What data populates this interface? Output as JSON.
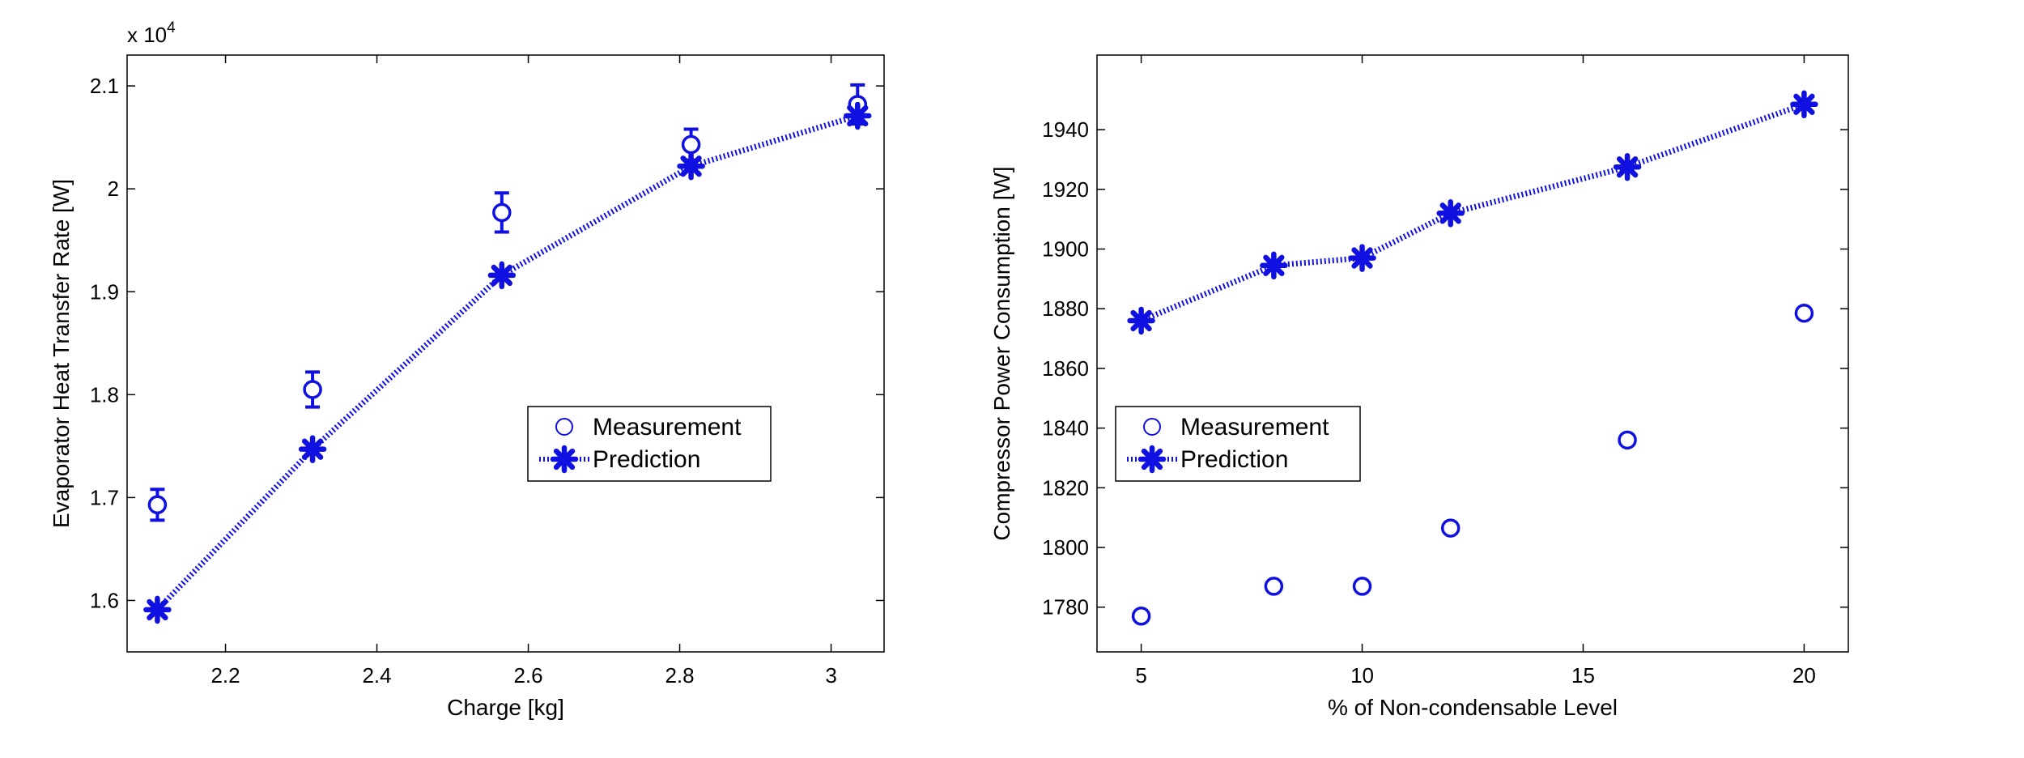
{
  "chart_data": [
    {
      "type": "scatter",
      "xlabel": "Charge [kg]",
      "ylabel": "Evaporator Heat Transfer Rate [W]",
      "y_exponent_label": "x 10",
      "y_exponent_power": "4",
      "xlim": [
        2.07,
        3.07
      ],
      "ylim": [
        1.55,
        2.13
      ],
      "xticks": [
        2.2,
        2.4,
        2.6,
        2.8,
        3.0
      ],
      "xtick_labels": [
        "2.2",
        "2.4",
        "2.6",
        "2.8",
        "3"
      ],
      "yticks": [
        1.6,
        1.7,
        1.8,
        1.9,
        2.0,
        2.1
      ],
      "ytick_labels": [
        "1.6",
        "1.7",
        "1.8",
        "1.9",
        "2",
        "2.1"
      ],
      "legend_position": "center-right",
      "series": [
        {
          "name": "Measurement",
          "marker": "open-circle",
          "x": [
            2.11,
            2.315,
            2.565,
            2.815,
            3.035
          ],
          "y": [
            1.693,
            1.805,
            1.977,
            2.043,
            2.082
          ],
          "error": [
            0.015,
            0.017,
            0.019,
            0.015,
            0.019
          ]
        },
        {
          "name": "Prediction",
          "marker": "asterisk",
          "line": "dotted",
          "x": [
            2.11,
            2.315,
            2.565,
            2.815,
            3.035
          ],
          "y": [
            1.591,
            1.747,
            1.916,
            2.022,
            2.071
          ]
        }
      ],
      "color": "#1010e0"
    },
    {
      "type": "scatter",
      "xlabel": "% of Non-condensable Level",
      "ylabel": "Compressor Power Consumption [W]",
      "xlim": [
        4,
        21
      ],
      "ylim": [
        1765,
        1965
      ],
      "xticks": [
        5,
        10,
        15,
        20
      ],
      "xtick_labels": [
        "5",
        "10",
        "15",
        "20"
      ],
      "yticks": [
        1780,
        1800,
        1820,
        1840,
        1860,
        1880,
        1900,
        1920,
        1940
      ],
      "ytick_labels": [
        "1780",
        "1800",
        "1820",
        "1840",
        "1860",
        "1880",
        "1900",
        "1920",
        "1940"
      ],
      "legend_position": "center-left",
      "series": [
        {
          "name": "Measurement",
          "marker": "open-circle",
          "x": [
            5,
            8,
            10,
            12,
            16,
            20
          ],
          "y": [
            1777,
            1787,
            1787,
            1806.5,
            1836,
            1878.5
          ],
          "error": [
            1.5,
            1.5,
            1.5,
            1.5,
            1.5,
            1.5
          ]
        },
        {
          "name": "Prediction",
          "marker": "asterisk",
          "line": "dotted",
          "x": [
            5,
            8,
            10,
            12,
            16,
            20
          ],
          "y": [
            1876,
            1894.5,
            1897,
            1912,
            1927.5,
            1948.5
          ]
        }
      ],
      "color": "#1010e0"
    }
  ]
}
